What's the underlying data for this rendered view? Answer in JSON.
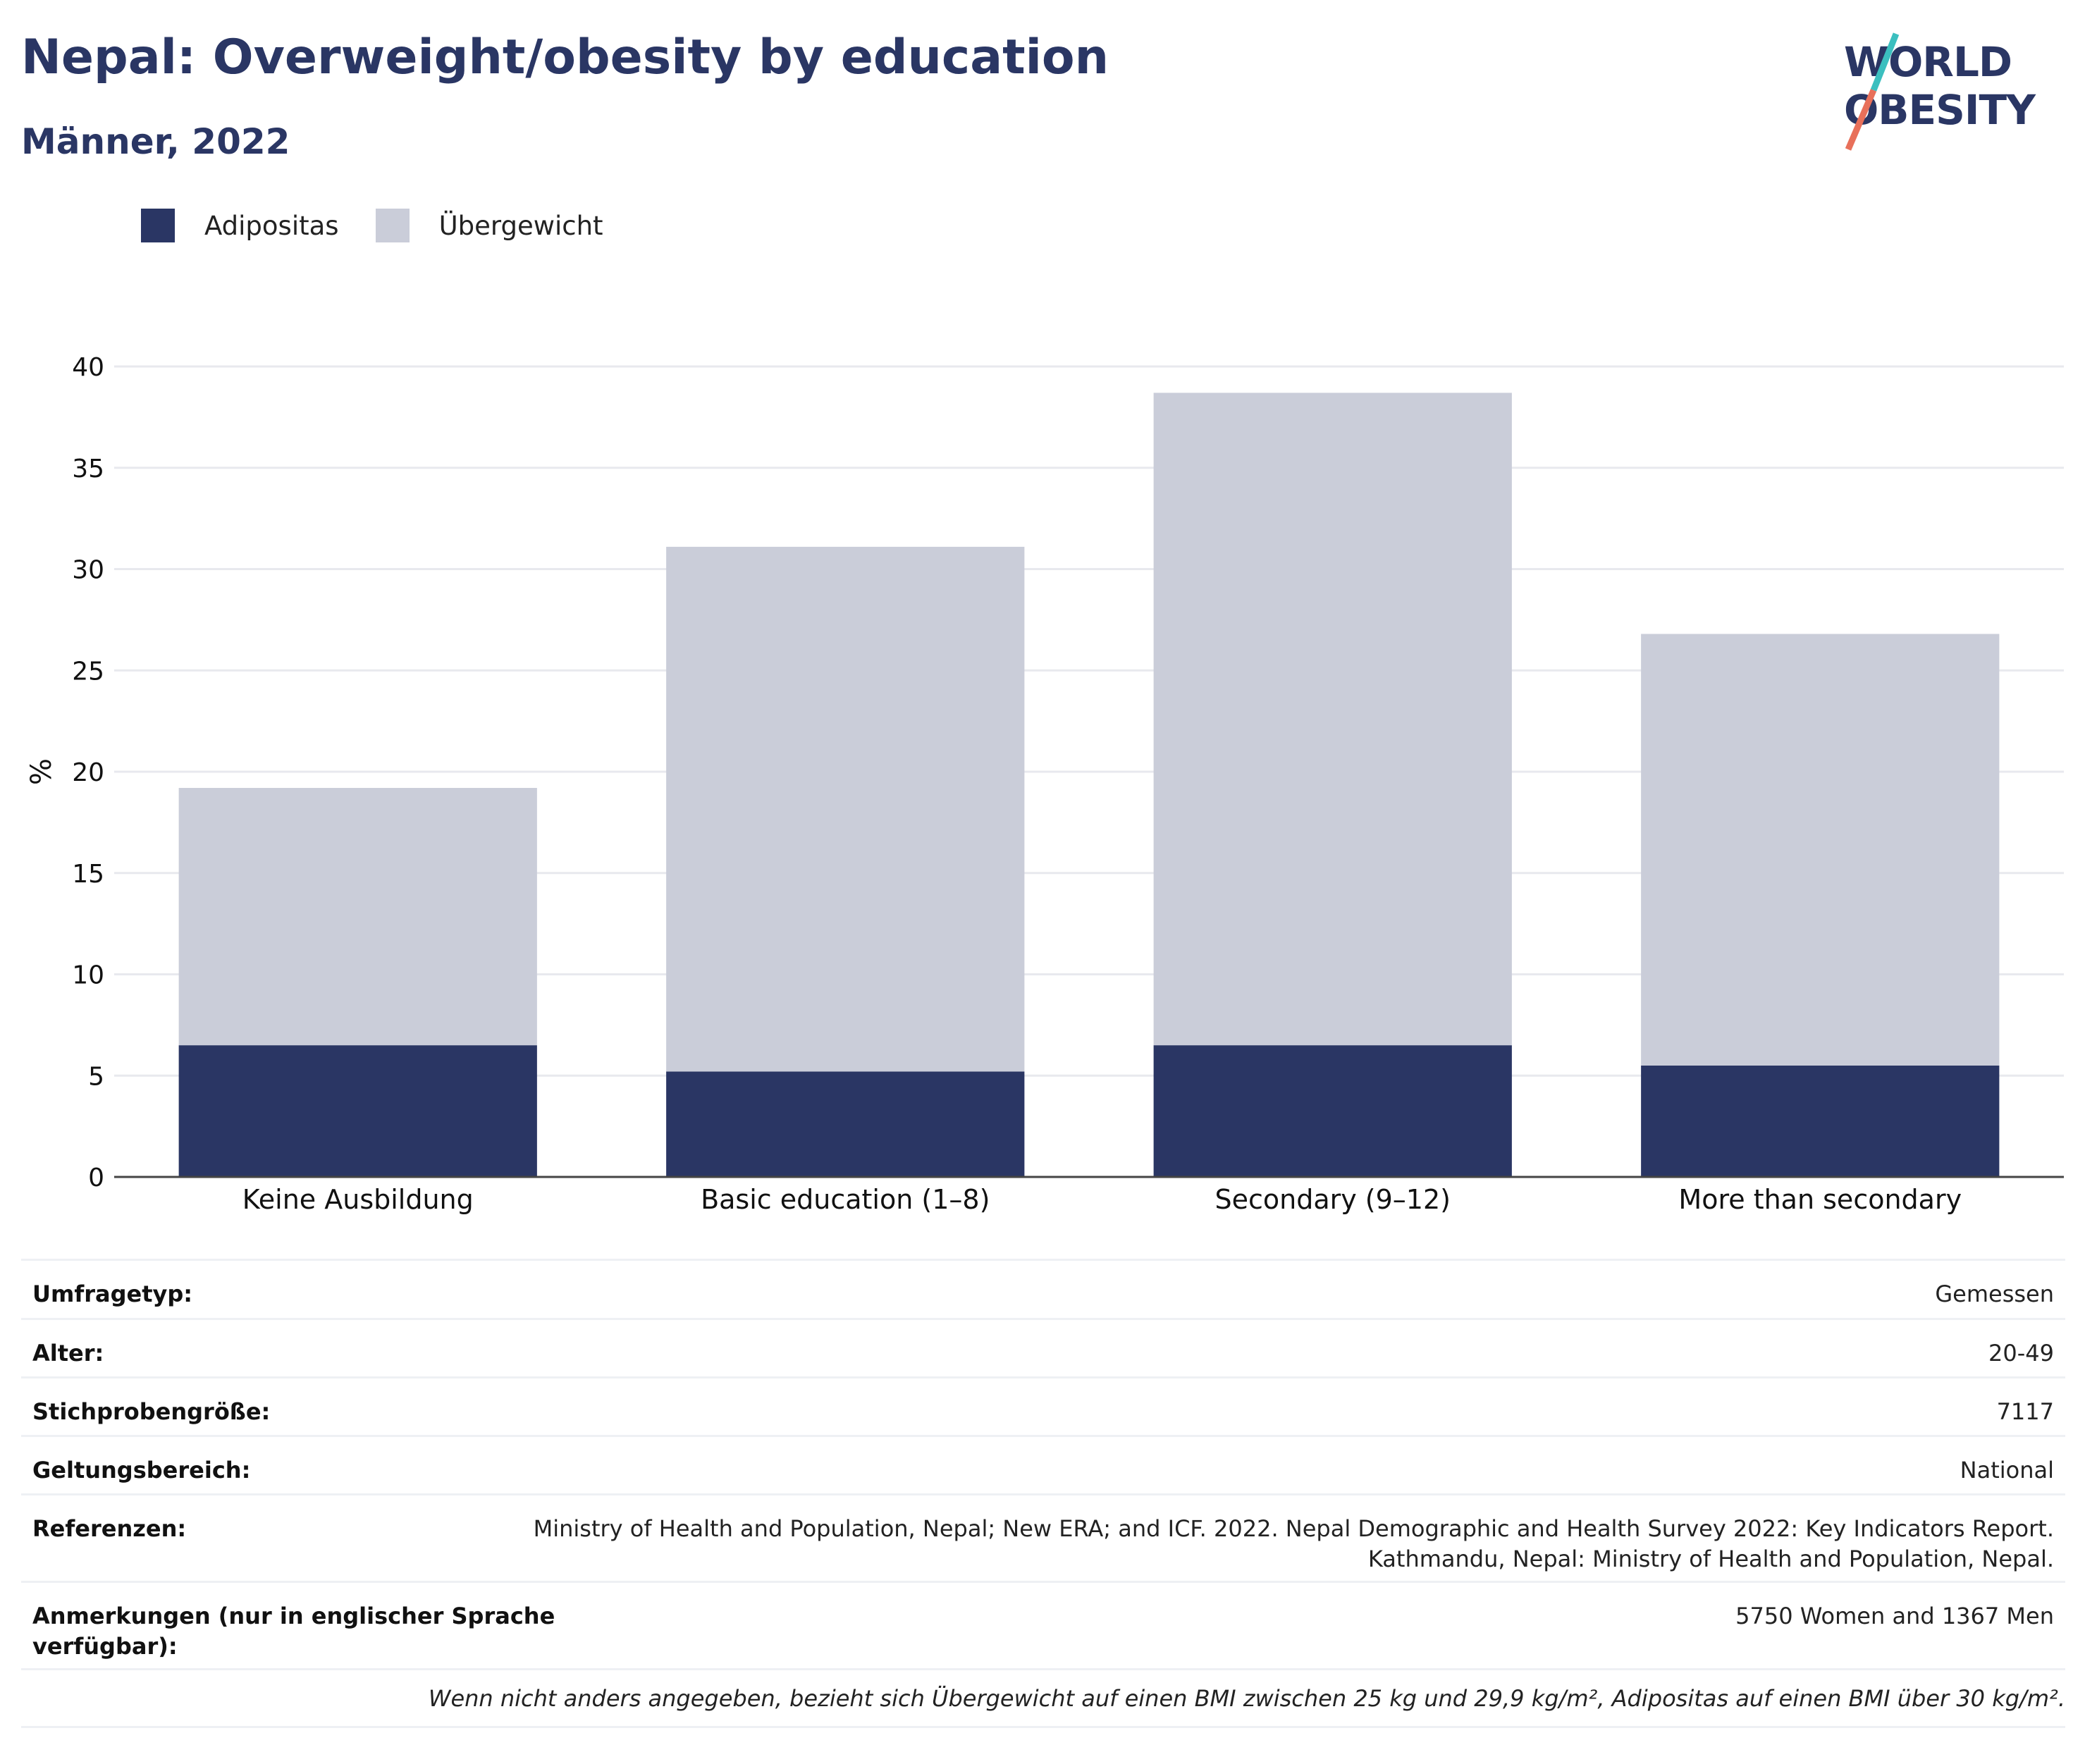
{
  "header": {
    "title": "Nepal: Overweight/obesity by education",
    "subtitle": "Männer, 2022"
  },
  "logo": {
    "line1": "WORLD",
    "line2": "OBESITY",
    "colors": {
      "text": "#2a3664",
      "accent_teal": "#3bbfbf",
      "accent_coral": "#e8705a"
    }
  },
  "legend": [
    {
      "label": "Adipositas",
      "color": "#2a3664"
    },
    {
      "label": "Übergewicht",
      "color": "#cacdd9"
    }
  ],
  "chart_data": {
    "type": "bar",
    "stacked": true,
    "categories": [
      "Keine Ausbildung",
      "Basic education (1–8)",
      "Secondary (9–12)",
      "More than secondary"
    ],
    "series": [
      {
        "name": "Adipositas",
        "values": [
          6.5,
          5.2,
          6.5,
          5.5
        ],
        "color": "#2a3664"
      },
      {
        "name": "Übergewicht",
        "values": [
          12.7,
          25.9,
          32.2,
          21.3
        ],
        "color": "#cacdd9"
      }
    ],
    "totals": [
      19.2,
      31.1,
      38.7,
      26.8
    ],
    "ylabel": "%",
    "ylim": [
      0,
      40
    ],
    "yticks": [
      0,
      5,
      10,
      15,
      20,
      25,
      30,
      35,
      40
    ],
    "grid": true,
    "legend_position": "top-left"
  },
  "info_table": [
    {
      "key": "Umfragetyp:",
      "value": "Gemessen"
    },
    {
      "key": "Alter:",
      "value": "20-49"
    },
    {
      "key": "Stichprobengröße:",
      "value": "7117"
    },
    {
      "key": "Geltungsbereich:",
      "value": "National"
    },
    {
      "key": "Referenzen:",
      "value": "Ministry of Health and Population, Nepal; New ERA; and ICF. 2022. Nepal Demographic and Health Survey 2022: Key Indicators Report.\nKathmandu, Nepal: Ministry of Health and Population, Nepal."
    },
    {
      "key": "Anmerkungen (nur in englischer Sprache\nverfügbar):",
      "value": "5750 Women and 1367 Men"
    }
  ],
  "footnote": "Wenn nicht anders angegeben, bezieht sich Übergewicht auf einen BMI zwischen 25 kg und 29,9 kg/m², Adipositas auf einen BMI über 30 kg/m²."
}
